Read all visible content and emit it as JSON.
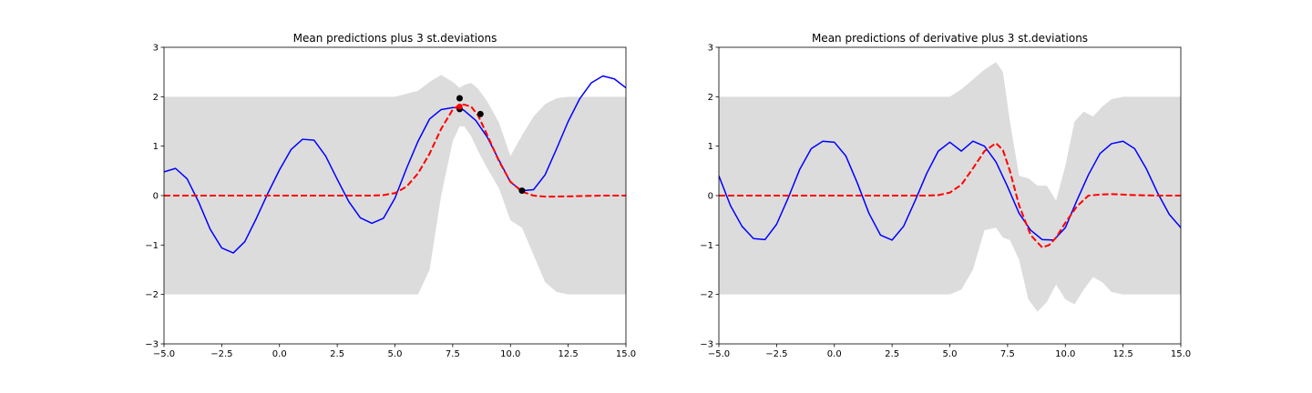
{
  "chart_data": [
    {
      "type": "line",
      "title": "Mean predictions plus 3 st.deviations",
      "xlabel": "",
      "ylabel": "",
      "xlim": [
        -5,
        15
      ],
      "ylim": [
        -3,
        3
      ],
      "xticks": [
        "−5.0",
        "−2.5",
        "0.0",
        "2.5",
        "5.0",
        "7.5",
        "10.0",
        "12.5",
        "15.0"
      ],
      "yticks": [
        "−3",
        "−2",
        "−1",
        "0",
        "1",
        "2",
        "3"
      ],
      "grid": false,
      "band": {
        "color": "#dcdcdc",
        "x": [
          -5,
          4,
          5,
          6,
          6.5,
          7,
          7.5,
          7.8,
          8.0,
          8.3,
          8.6,
          9.0,
          9.5,
          10.0,
          10.5,
          11.0,
          11.5,
          12.0,
          12.5,
          13,
          14,
          15
        ],
        "upper": [
          2.0,
          2.0,
          2.0,
          2.12,
          2.3,
          2.44,
          2.3,
          2.18,
          2.24,
          2.28,
          2.16,
          1.9,
          1.48,
          0.8,
          1.22,
          1.6,
          1.85,
          1.97,
          2.0,
          2.0,
          2.0,
          2.0
        ],
        "lower": [
          -2.0,
          -2.0,
          -2.0,
          -2.0,
          -1.5,
          0.0,
          1.1,
          1.4,
          1.4,
          1.2,
          0.9,
          0.55,
          0.15,
          -0.5,
          -0.65,
          -1.2,
          -1.75,
          -1.95,
          -2.0,
          -2.0,
          -2.0,
          -2.0
        ]
      },
      "series": [
        {
          "color": "#0000ff",
          "style": "solid",
          "x": [
            -5,
            -4.5,
            -4,
            -3.5,
            -3,
            -2.5,
            -2,
            -1.5,
            -1,
            -0.5,
            0,
            0.5,
            1,
            1.5,
            2,
            2.5,
            3,
            3.5,
            4,
            4.5,
            5,
            5.5,
            6,
            6.5,
            7,
            7.5,
            7.8,
            8,
            8.5,
            9,
            9.5,
            10,
            10.5,
            11,
            11.5,
            12,
            12.5,
            13,
            13.5,
            14,
            14.5,
            15
          ],
          "y": [
            0.48,
            0.55,
            0.34,
            -0.13,
            -0.68,
            -1.06,
            -1.16,
            -0.93,
            -0.46,
            0.05,
            0.52,
            0.93,
            1.14,
            1.12,
            0.8,
            0.33,
            -0.12,
            -0.45,
            -0.56,
            -0.46,
            -0.05,
            0.55,
            1.1,
            1.55,
            1.74,
            1.78,
            1.78,
            1.72,
            1.52,
            1.18,
            0.72,
            0.27,
            0.1,
            0.12,
            0.42,
            0.95,
            1.5,
            1.96,
            2.28,
            2.42,
            2.36,
            2.18
          ]
        },
        {
          "color": "#ff0000",
          "style": "dashed",
          "x": [
            -5,
            4,
            4.5,
            5,
            5.5,
            6,
            6.5,
            7,
            7.5,
            7.8,
            8,
            8.3,
            8.6,
            9,
            9.5,
            10,
            10.5,
            11,
            11.5,
            12,
            13,
            14,
            15
          ],
          "y": [
            0.0,
            0.0,
            0.01,
            0.05,
            0.18,
            0.45,
            0.85,
            1.35,
            1.74,
            1.84,
            1.84,
            1.8,
            1.62,
            1.22,
            0.7,
            0.28,
            0.08,
            0.0,
            -0.02,
            -0.02,
            -0.01,
            0.0,
            0.0
          ]
        }
      ],
      "points": {
        "color": "#000000",
        "x": [
          7.8,
          7.8,
          8.7,
          10.5
        ],
        "y": [
          1.97,
          1.75,
          1.65,
          0.1
        ]
      },
      "highlight_points": {
        "color": "#ff0000",
        "x": [
          7.8
        ],
        "y": [
          1.8
        ]
      }
    },
    {
      "type": "line",
      "title": "Mean predictions of derivative plus 3 st.deviations",
      "xlabel": "",
      "ylabel": "",
      "xlim": [
        -5,
        15
      ],
      "ylim": [
        -3,
        3
      ],
      "xticks": [
        "−5.0",
        "−2.5",
        "0.0",
        "2.5",
        "5.0",
        "7.5",
        "10.0",
        "12.5",
        "15.0"
      ],
      "yticks": [
        "−3",
        "−2",
        "−1",
        "0",
        "1",
        "2",
        "3"
      ],
      "grid": false,
      "band": {
        "color": "#dcdcdc",
        "x": [
          -5,
          4,
          5,
          5.5,
          6,
          6.5,
          7,
          7.3,
          7.6,
          8.0,
          8.4,
          8.8,
          9.2,
          9.6,
          10.0,
          10.4,
          10.8,
          11.2,
          11.6,
          12.0,
          12.5,
          13,
          14,
          15
        ],
        "upper": [
          2.0,
          2.0,
          2.0,
          2.15,
          2.35,
          2.55,
          2.7,
          2.5,
          1.5,
          0.4,
          0.35,
          0.2,
          0.2,
          -0.1,
          0.6,
          1.5,
          1.7,
          1.6,
          1.8,
          1.95,
          2.0,
          2.0,
          2.0,
          2.0
        ],
        "lower": [
          -2.0,
          -2.0,
          -2.0,
          -1.9,
          -1.5,
          -0.7,
          -0.65,
          -0.85,
          -0.9,
          -1.3,
          -2.1,
          -2.35,
          -2.15,
          -1.8,
          -2.1,
          -2.2,
          -1.9,
          -1.65,
          -1.75,
          -1.95,
          -2.0,
          -2.0,
          -2.0,
          -2.0
        ]
      },
      "series": [
        {
          "color": "#0000ff",
          "style": "solid",
          "x": [
            -5,
            -4.5,
            -4,
            -3.5,
            -3,
            -2.5,
            -2,
            -1.5,
            -1,
            -0.5,
            0,
            0.5,
            1,
            1.5,
            2,
            2.5,
            3,
            3.5,
            4,
            4.5,
            5,
            5.5,
            6,
            6.5,
            7,
            7.5,
            8,
            8.5,
            9,
            9.5,
            10,
            10.5,
            11,
            11.5,
            12,
            12.5,
            13,
            13.5,
            14,
            14.5,
            15
          ],
          "y": [
            0.4,
            -0.2,
            -0.62,
            -0.87,
            -0.89,
            -0.58,
            -0.05,
            0.53,
            0.95,
            1.1,
            1.08,
            0.8,
            0.25,
            -0.36,
            -0.8,
            -0.9,
            -0.62,
            -0.1,
            0.45,
            0.9,
            1.08,
            0.9,
            1.1,
            1.0,
            0.68,
            0.18,
            -0.36,
            -0.7,
            -0.89,
            -0.9,
            -0.65,
            -0.1,
            0.42,
            0.85,
            1.05,
            1.1,
            0.95,
            0.55,
            0.05,
            -0.38,
            -0.65
          ]
        },
        {
          "color": "#ff0000",
          "style": "dashed",
          "x": [
            -5,
            4,
            4.5,
            5,
            5.5,
            6,
            6.5,
            7,
            7.3,
            7.6,
            8,
            8.5,
            9,
            9.3,
            9.6,
            10,
            10.5,
            11,
            11.5,
            12,
            13,
            14,
            15
          ],
          "y": [
            0.0,
            0.0,
            0.01,
            0.06,
            0.22,
            0.55,
            0.9,
            1.06,
            0.92,
            0.5,
            -0.2,
            -0.8,
            -1.05,
            -1.0,
            -0.85,
            -0.55,
            -0.22,
            0.0,
            0.02,
            0.03,
            0.01,
            0.0,
            0.0
          ]
        }
      ]
    }
  ]
}
